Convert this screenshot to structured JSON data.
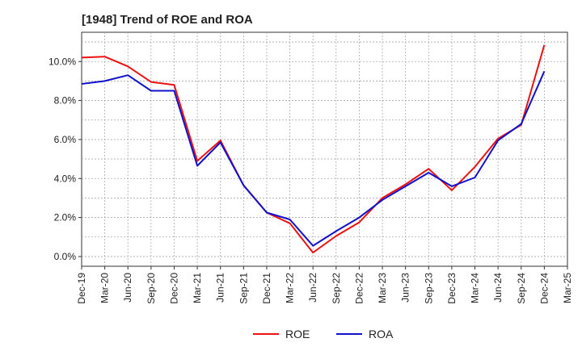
{
  "chart_data": {
    "type": "line",
    "title": "[1948]  Trend of ROE and ROA",
    "x": [
      "Dec-19",
      "Mar-20",
      "Jun-20",
      "Sep-20",
      "Dec-20",
      "Mar-21",
      "Jun-21",
      "Sep-21",
      "Dec-21",
      "Mar-22",
      "Jun-22",
      "Sep-22",
      "Dec-22",
      "Mar-23",
      "Jun-23",
      "Sep-23",
      "Dec-23",
      "Mar-24",
      "Jun-24",
      "Sep-24",
      "Dec-24",
      "Mar-25"
    ],
    "y_ticks": [
      "0.0%",
      "2.0%",
      "4.0%",
      "6.0%",
      "8.0%",
      "10.0%"
    ],
    "ylim": [
      -0.5,
      11.5
    ],
    "grid": true,
    "legend_position": "bottom",
    "series": [
      {
        "name": "ROE",
        "color": "#ee1111",
        "values": [
          10.2,
          10.25,
          9.75,
          8.95,
          8.8,
          4.9,
          5.95,
          3.65,
          2.25,
          1.7,
          0.2,
          1.05,
          1.75,
          3.0,
          3.7,
          4.5,
          3.4,
          4.6,
          6.05,
          6.75,
          10.85,
          null
        ]
      },
      {
        "name": "ROA",
        "color": "#1111cc",
        "values": [
          8.85,
          9.0,
          9.3,
          8.5,
          8.5,
          4.65,
          5.85,
          3.65,
          2.25,
          1.9,
          0.55,
          1.3,
          2.0,
          2.9,
          3.6,
          4.3,
          3.6,
          4.05,
          5.95,
          6.8,
          9.5,
          null
        ]
      }
    ]
  }
}
